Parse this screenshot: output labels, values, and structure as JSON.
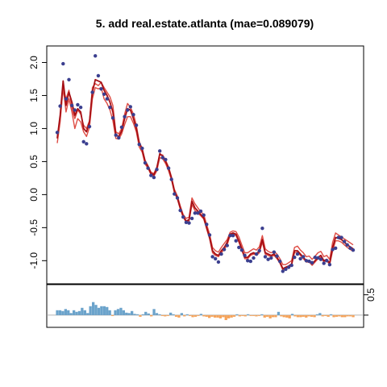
{
  "chart_data": [
    {
      "type": "line",
      "title": "5. add real.estate.atlanta (mae=0.089079)",
      "xlabel": "",
      "ylabel": "",
      "ylim": [
        -1.35,
        2.25
      ],
      "yticks": [
        -1.0,
        -0.5,
        0.0,
        0.5,
        1.0,
        1.5,
        2.0
      ],
      "ytick_labels": [
        "-1.0",
        "-0.5",
        "0.0",
        "0.5",
        "1.0",
        "1.5",
        "2.0"
      ],
      "grid": false,
      "legend": "none",
      "xlim": [
        0,
        116
      ],
      "colors": {
        "points": "#3b3f8f",
        "fit": "#a50f15",
        "bands": "#de4c44"
      },
      "series": [
        {
          "kind": "points",
          "values": [
            0.94,
            1.34,
            1.98,
            1.45,
            1.74,
            1.35,
            1.28,
            1.36,
            1.32,
            0.8,
            0.77,
            1.03,
            1.55,
            2.1,
            1.8,
            1.6,
            1.52,
            1.45,
            1.32,
            1.16,
            0.9,
            0.86,
            1.02,
            1.18,
            1.28,
            1.33,
            1.21,
            1.05,
            0.76,
            0.7,
            0.48,
            0.4,
            0.29,
            0.26,
            0.38,
            0.66,
            0.56,
            0.53,
            0.4,
            0.23,
            0.01,
            -0.05,
            -0.24,
            -0.34,
            -0.42,
            -0.43,
            -0.36,
            -0.28,
            -0.28,
            -0.25,
            -0.31,
            -0.45,
            -0.61,
            -0.94,
            -0.97,
            -1.02,
            -0.9,
            -0.83,
            -0.77,
            -0.62,
            -0.62,
            -0.7,
            -0.8,
            -0.84,
            -0.92,
            -1.0,
            -1.01,
            -0.96,
            -0.9,
            -0.85,
            -0.51,
            -0.94,
            -0.98,
            -0.96,
            -0.87,
            -0.93,
            -1.01,
            -1.16,
            -1.13,
            -1.1,
            -1.07,
            -0.95,
            -0.9,
            -0.97,
            -0.94,
            -1.0,
            -1.01,
            -1.03,
            -0.95,
            -0.96,
            -0.98,
            -1.04,
            -1.0,
            -1.06,
            -0.83,
            -0.81,
            -0.65,
            -0.65,
            -0.71,
            -0.76,
            -0.81,
            -0.84
          ]
        },
        {
          "kind": "line",
          "values": [
            0.85,
            1.2,
            1.72,
            1.35,
            1.55,
            1.4,
            1.2,
            1.3,
            1.25,
            1.0,
            0.95,
            1.1,
            1.55,
            1.74,
            1.72,
            1.7,
            1.58,
            1.5,
            1.4,
            1.25,
            0.9,
            0.88,
            0.96,
            1.15,
            1.3,
            1.28,
            1.15,
            1.0,
            0.78,
            0.68,
            0.5,
            0.42,
            0.32,
            0.3,
            0.4,
            0.62,
            0.58,
            0.5,
            0.4,
            0.25,
            0.05,
            -0.05,
            -0.2,
            -0.33,
            -0.4,
            -0.38,
            -0.1,
            -0.2,
            -0.25,
            -0.3,
            -0.35,
            -0.5,
            -0.65,
            -0.85,
            -0.9,
            -0.92,
            -0.85,
            -0.8,
            -0.72,
            -0.6,
            -0.58,
            -0.6,
            -0.7,
            -0.82,
            -0.95,
            -0.95,
            -0.9,
            -0.88,
            -0.9,
            -0.85,
            -0.68,
            -0.88,
            -0.9,
            -0.92,
            -0.9,
            -0.95,
            -1.02,
            -1.12,
            -1.1,
            -1.08,
            -1.05,
            -0.85,
            -0.85,
            -0.9,
            -0.95,
            -1.0,
            -1.0,
            -1.05,
            -1.0,
            -0.95,
            -0.92,
            -1.0,
            -0.98,
            -1.04,
            -0.8,
            -0.65,
            -0.66,
            -0.68,
            -0.72,
            -0.76,
            -0.79,
            -0.82
          ]
        },
        {
          "kind": "line",
          "values": [
            0.78,
            1.1,
            1.62,
            1.25,
            1.45,
            1.25,
            1.0,
            1.15,
            1.1,
            0.95,
            0.88,
            1.02,
            1.45,
            1.62,
            1.6,
            1.62,
            1.45,
            1.38,
            1.28,
            1.12,
            0.85,
            0.84,
            0.92,
            1.06,
            1.18,
            1.18,
            1.08,
            0.95,
            0.72,
            0.64,
            0.46,
            0.4,
            0.3,
            0.28,
            0.36,
            0.56,
            0.54,
            0.47,
            0.36,
            0.22,
            0.03,
            -0.07,
            -0.22,
            -0.34,
            -0.42,
            -0.4,
            -0.15,
            -0.24,
            -0.28,
            -0.32,
            -0.37,
            -0.52,
            -0.67,
            -0.88,
            -0.92,
            -0.94,
            -0.88,
            -0.83,
            -0.76,
            -0.62,
            -0.6,
            -0.62,
            -0.72,
            -0.84,
            -0.97,
            -0.97,
            -0.92,
            -0.9,
            -0.92,
            -0.88,
            -0.72,
            -0.9,
            -0.92,
            -0.94,
            -0.92,
            -0.97,
            -1.04,
            -1.14,
            -1.12,
            -1.1,
            -1.07,
            -0.88,
            -0.87,
            -0.92,
            -0.97,
            -1.02,
            -1.02,
            -1.07,
            -1.02,
            -0.97,
            -0.95,
            -1.02,
            -1.0,
            -1.06,
            -0.85,
            -0.7,
            -0.7,
            -0.72,
            -0.76,
            -0.8,
            -0.83,
            -0.86
          ]
        },
        {
          "kind": "line",
          "values": [
            0.88,
            1.15,
            1.6,
            1.45,
            1.58,
            1.3,
            1.15,
            1.28,
            1.22,
            1.05,
            1.0,
            1.12,
            1.62,
            1.68,
            1.65,
            1.7,
            1.62,
            1.55,
            1.48,
            1.35,
            0.95,
            0.92,
            1.0,
            1.22,
            1.38,
            1.32,
            1.22,
            1.05,
            0.8,
            0.7,
            0.52,
            0.44,
            0.34,
            0.32,
            0.42,
            0.6,
            0.6,
            0.52,
            0.42,
            0.27,
            0.08,
            -0.02,
            -0.17,
            -0.3,
            -0.36,
            -0.34,
            -0.05,
            -0.14,
            -0.2,
            -0.26,
            -0.3,
            -0.45,
            -0.6,
            -0.8,
            -0.85,
            -0.87,
            -0.8,
            -0.74,
            -0.68,
            -0.57,
            -0.55,
            -0.56,
            -0.64,
            -0.76,
            -0.88,
            -0.88,
            -0.85,
            -0.82,
            -0.84,
            -0.79,
            -0.62,
            -0.82,
            -0.86,
            -0.88,
            -0.86,
            -0.9,
            -0.97,
            -1.06,
            -1.06,
            -1.03,
            -1.0,
            -0.8,
            -0.78,
            -0.84,
            -0.88,
            -0.94,
            -0.93,
            -0.98,
            -0.93,
            -0.88,
            -0.86,
            -0.94,
            -0.92,
            -0.98,
            -0.72,
            -0.58,
            -0.61,
            -0.64,
            -0.67,
            -0.7,
            -0.73,
            -0.76
          ]
        }
      ]
    },
    {
      "type": "bar",
      "title": "",
      "ylabel": "",
      "ylim": [
        -0.3,
        0.75
      ],
      "yticks": [
        0.5
      ],
      "ytick_labels": [
        "0.5"
      ],
      "colors": {
        "positive": "#6ba3cb",
        "negative": "#f5a35a"
      },
      "values": [
        0.12,
        0.12,
        0.1,
        0.15,
        0.12,
        0.05,
        0.12,
        0.08,
        0.1,
        0.18,
        0.12,
        0.05,
        0.22,
        0.32,
        0.25,
        0.18,
        0.22,
        0.22,
        0.2,
        0.12,
        -0.02,
        0.12,
        0.15,
        0.18,
        0.12,
        0.06,
        0.05,
        0.1,
        0.03,
        0.02,
        -0.04,
        0.02,
        0.08,
        0.04,
        -0.03,
        0.15,
        0.05,
        0.02,
        -0.02,
        -0.03,
        -0.02,
        0.06,
        0.02,
        -0.04,
        -0.06,
        0.05,
        -0.03,
        0.02,
        -0.02,
        -0.05,
        -0.04,
        -0.02,
        0.03,
        -0.03,
        -0.04,
        -0.07,
        -0.04,
        -0.06,
        -0.06,
        -0.08,
        -0.05,
        -0.12,
        -0.08,
        -0.06,
        -0.04,
        0.02,
        -0.03,
        -0.02,
        -0.03,
        0.02,
        -0.02,
        -0.02,
        -0.03,
        -0.02,
        0.02,
        -0.06,
        -0.04,
        -0.08,
        -0.05,
        -0.05,
        0.08,
        -0.03,
        -0.05,
        -0.06,
        -0.08,
        0.03,
        -0.03,
        -0.05,
        -0.05,
        -0.04,
        -0.06,
        -0.03,
        -0.04,
        -0.05,
        0.02,
        0.05,
        -0.03,
        -0.02,
        -0.04,
        0.02,
        -0.05,
        -0.04,
        -0.03,
        -0.05,
        -0.05,
        -0.03,
        -0.03,
        -0.05
      ]
    }
  ]
}
